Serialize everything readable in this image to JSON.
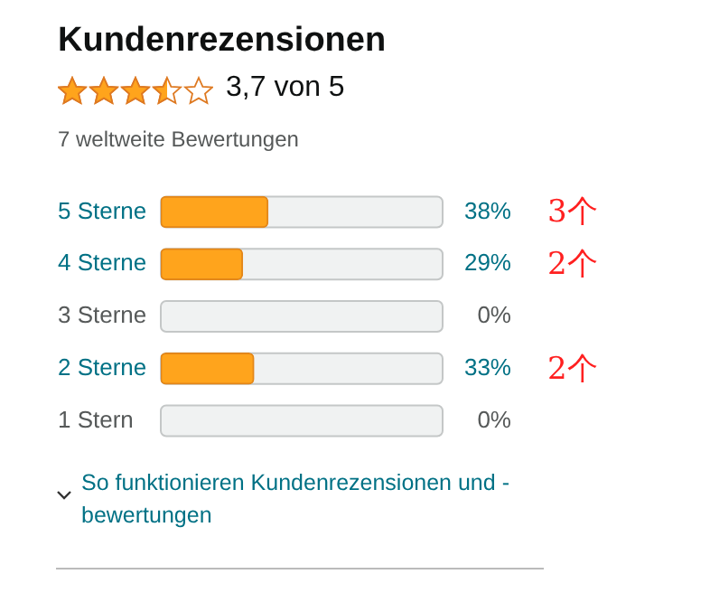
{
  "chart_data": {
    "type": "bar",
    "orientation": "horizontal",
    "title": "Kundenrezensionen",
    "subtitle": "3,7 von 5",
    "categories": [
      "5 Sterne",
      "4 Sterne",
      "3 Sterne",
      "2 Sterne",
      "1 Stern"
    ],
    "values": [
      38,
      29,
      0,
      33,
      0
    ],
    "color": "#ffa41c",
    "value_labels": [
      "38%",
      "29%",
      "0%",
      "33%",
      "0%"
    ],
    "xlim": [
      0,
      100
    ],
    "tick_labels": "y",
    "grid": false,
    "legend": false,
    "annotations": [
      "7 weltweite Bewertungen",
      "3个",
      "2个",
      "2个",
      "So funktionieren Kundenrezensionen und -bewertungen"
    ]
  }
}
